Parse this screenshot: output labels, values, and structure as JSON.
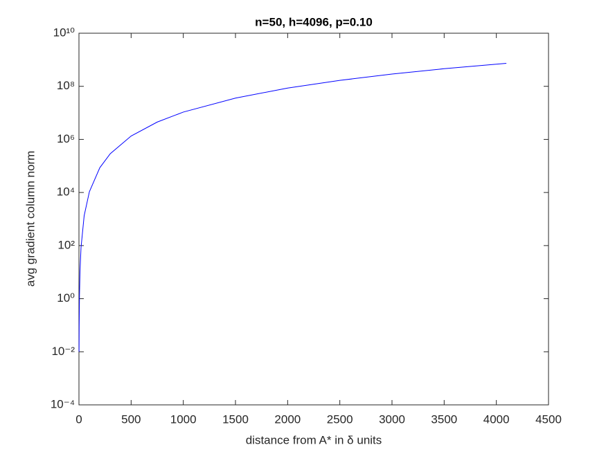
{
  "chart_data": {
    "type": "line",
    "title": "n=50, h=4096, p=0.10",
    "x_label": "distance from A* in δ units",
    "y_label": "avg gradient column norm",
    "x": [
      1,
      2,
      5,
      10,
      20,
      50,
      100,
      200,
      300,
      500,
      750,
      1000,
      1500,
      2000,
      2500,
      3000,
      3500,
      4096
    ],
    "series": [
      {
        "color": "#0000ff",
        "values": [
          0.01,
          0.09,
          1.34,
          10.7,
          86,
          1340,
          10700,
          86000,
          289000,
          1340000,
          4500000,
          10700000,
          36000000,
          86000000,
          167000000,
          290000000,
          460000000,
          735000000
        ]
      }
    ],
    "xlim": [
      0,
      4500
    ],
    "xticks": [
      0,
      500,
      1000,
      1500,
      2000,
      2500,
      3000,
      3500,
      4000,
      4500
    ],
    "ylim": [
      0.0001,
      10000000000
    ],
    "yscale": "log",
    "yticks": [
      {
        "value": 0.0001,
        "label": "10⁻⁴"
      },
      {
        "value": 0.01,
        "label": "10⁻²"
      },
      {
        "value": 1,
        "label": "10⁰"
      },
      {
        "value": 100,
        "label": "10²"
      },
      {
        "value": 10000,
        "label": "10⁴"
      },
      {
        "value": 1000000,
        "label": "10⁶"
      },
      {
        "value": 100000000,
        "label": "10⁸"
      },
      {
        "value": 10000000000,
        "label": "10¹⁰"
      }
    ],
    "grid": false
  }
}
